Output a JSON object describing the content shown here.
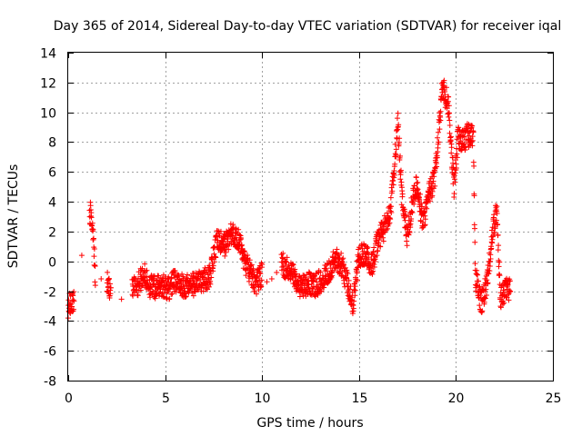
{
  "chart_data": {
    "type": "scatter",
    "title": "Day 365 of 2014, Sidereal Day-to-day VTEC variation (SDTVAR) for receiver iqal",
    "xlabel": "GPS time / hours",
    "ylabel": "SDTVAR / TECUs",
    "xlim": [
      0,
      25
    ],
    "ylim": [
      -8,
      14
    ],
    "xticks": [
      0,
      5,
      10,
      15,
      20,
      25
    ],
    "yticks": [
      -8,
      -6,
      -4,
      -2,
      0,
      2,
      4,
      6,
      8,
      10,
      12,
      14
    ],
    "grid": true,
    "marker": "+",
    "color": "#ff0000",
    "series": [
      {
        "name": "SDTVAR",
        "keypoints": [
          [
            0.0,
            -3.0
          ],
          [
            0.3,
            -2.6
          ],
          [
            1.1,
            3.5
          ],
          [
            1.3,
            2.0
          ],
          [
            1.4,
            -1.5
          ],
          [
            2.0,
            -1.5
          ],
          [
            2.2,
            -1.8
          ],
          [
            3.3,
            -2.0
          ],
          [
            3.6,
            -1.5
          ],
          [
            3.9,
            -0.8
          ],
          [
            4.1,
            -1.5
          ],
          [
            4.4,
            -1.8
          ],
          [
            4.8,
            -1.6
          ],
          [
            5.2,
            -1.8
          ],
          [
            5.5,
            -1.3
          ],
          [
            5.8,
            -1.5
          ],
          [
            6.1,
            -1.7
          ],
          [
            6.5,
            -1.5
          ],
          [
            6.9,
            -1.3
          ],
          [
            7.3,
            -1.0
          ],
          [
            7.7,
            1.5
          ],
          [
            8.0,
            1.0
          ],
          [
            8.4,
            1.8
          ],
          [
            8.8,
            1.5
          ],
          [
            9.1,
            0.0
          ],
          [
            9.4,
            -0.8
          ],
          [
            9.7,
            -1.5
          ],
          [
            10.0,
            -0.8
          ],
          [
            10.5,
            -0.5
          ],
          [
            11.0,
            -0.2
          ],
          [
            11.4,
            -0.5
          ],
          [
            11.7,
            -1.0
          ],
          [
            12.0,
            -1.8
          ],
          [
            12.4,
            -1.5
          ],
          [
            12.8,
            -1.6
          ],
          [
            13.2,
            -1.0
          ],
          [
            13.5,
            -0.5
          ],
          [
            13.8,
            0.2
          ],
          [
            14.1,
            -0.2
          ],
          [
            14.4,
            -1.5
          ],
          [
            14.7,
            -2.8
          ],
          [
            15.0,
            0.5
          ],
          [
            15.3,
            0.4
          ],
          [
            15.7,
            -0.2
          ],
          [
            16.0,
            1.5
          ],
          [
            16.3,
            2.2
          ],
          [
            16.6,
            3.0
          ],
          [
            16.8,
            6.0
          ],
          [
            17.0,
            9.5
          ],
          [
            17.2,
            4.5
          ],
          [
            17.5,
            1.5
          ],
          [
            17.8,
            4.5
          ],
          [
            18.0,
            5.0
          ],
          [
            18.3,
            2.5
          ],
          [
            18.6,
            4.5
          ],
          [
            18.9,
            5.5
          ],
          [
            19.1,
            8.5
          ],
          [
            19.3,
            11.8
          ],
          [
            19.6,
            10.5
          ],
          [
            19.9,
            5.0
          ],
          [
            20.1,
            8.3
          ],
          [
            20.4,
            8.0
          ],
          [
            20.6,
            8.5
          ],
          [
            20.9,
            8.3
          ],
          [
            21.0,
            -1.0
          ],
          [
            21.3,
            -2.8
          ],
          [
            21.6,
            -1.5
          ],
          [
            21.9,
            2.0
          ],
          [
            22.1,
            3.5
          ],
          [
            22.3,
            -2.5
          ],
          [
            22.6,
            -1.8
          ],
          [
            22.8,
            -2.0
          ]
        ]
      }
    ]
  }
}
